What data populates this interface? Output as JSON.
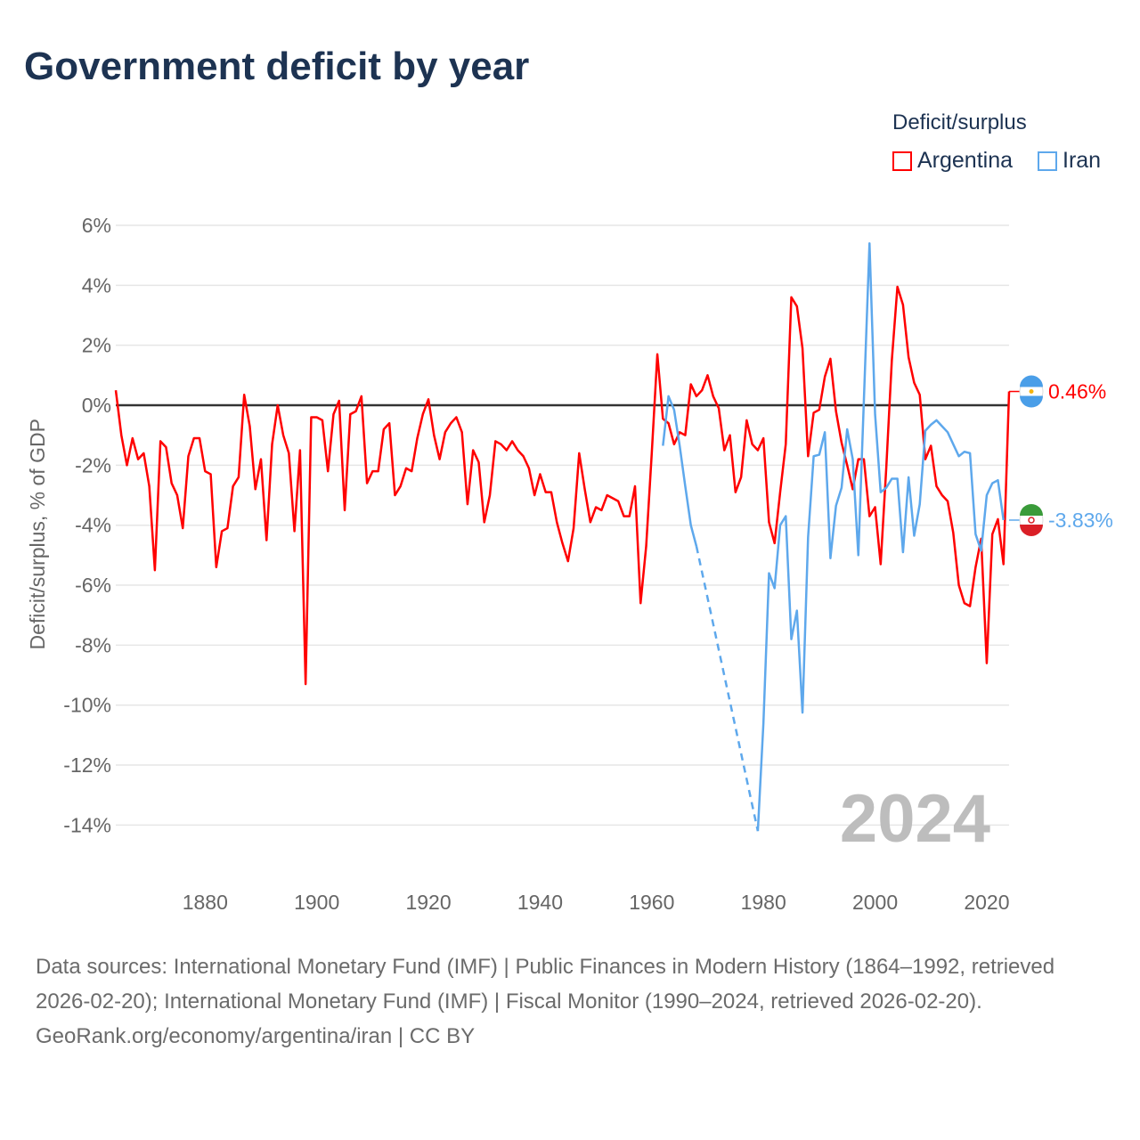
{
  "title": "Government deficit by year",
  "legend": {
    "title": "Deficit/surplus",
    "items": [
      {
        "name": "Argentina",
        "color": "#ff0000"
      },
      {
        "name": "Iran",
        "color": "#5ea8ec"
      }
    ]
  },
  "footer": {
    "sources": "Data sources: International Monetary Fund (IMF) | Public Finances in Modern History (1864–1992, retrieved 2026-02-20); International Monetary Fund (IMF) | Fiscal Monitor (1990–2024, retrieved 2026-02-20).",
    "credit": "GeoRank.org/economy/argentina/iran | CC BY"
  },
  "chart_data": {
    "type": "line",
    "title": "Government deficit by year",
    "ylabel": "Deficit/surplus, % of GDP",
    "xlabel": "",
    "xlim": [
      1864,
      2024
    ],
    "ylim": [
      -15,
      7
    ],
    "yticks": [
      6,
      4,
      2,
      0,
      -2,
      -4,
      -6,
      -8,
      -10,
      -12,
      -14
    ],
    "ytick_labels": [
      "6%",
      "4%",
      "2%",
      "0%",
      "-2%",
      "-4%",
      "-6%",
      "-8%",
      "-10%",
      "-12%",
      "-14%"
    ],
    "xticks": [
      1880,
      1900,
      1920,
      1940,
      1960,
      1980,
      2000,
      2020
    ],
    "xtick_labels": [
      "1880",
      "1900",
      "1920",
      "1940",
      "1960",
      "1980",
      "2000",
      "2020"
    ],
    "grid": true,
    "legend_position": "top-right",
    "year_label": "2024",
    "series": [
      {
        "name": "Argentina",
        "color": "#ff0000",
        "start_year": 1864,
        "end_label": "0.46%",
        "values": [
          0.5,
          -1.0,
          -2.0,
          -1.1,
          -1.8,
          -1.6,
          -2.7,
          -5.5,
          -1.2,
          -1.4,
          -2.6,
          -3.0,
          -4.1,
          -1.7,
          -1.1,
          -1.1,
          -2.2,
          -2.3,
          -5.4,
          -4.2,
          -4.1,
          -2.7,
          -2.4,
          0.35,
          -0.7,
          -2.8,
          -1.8,
          -4.5,
          -1.3,
          0.0,
          -1.0,
          -1.6,
          -4.2,
          -1.5,
          -9.3,
          -0.4,
          -0.4,
          -0.5,
          -2.2,
          -0.3,
          0.15,
          -3.5,
          -0.3,
          -0.2,
          0.3,
          -2.6,
          -2.2,
          -2.2,
          -0.8,
          -0.6,
          -3.0,
          -2.7,
          -2.1,
          -2.2,
          -1.1,
          -0.3,
          0.2,
          -1.0,
          -1.8,
          -0.9,
          -0.6,
          -0.4,
          -0.9,
          -3.3,
          -1.5,
          -1.9,
          -3.9,
          -3.0,
          -1.2,
          -1.3,
          -1.5,
          -1.2,
          -1.5,
          -1.7,
          -2.1,
          -3.0,
          -2.3,
          -2.9,
          -2.9,
          -3.9,
          -4.6,
          -5.2,
          -4.1,
          -1.6,
          -2.8,
          -3.9,
          -3.4,
          -3.5,
          -3.0,
          -3.1,
          -3.2,
          -3.7,
          -3.7,
          -2.7,
          -6.6,
          -4.7,
          -1.6,
          1.7,
          -0.45,
          -0.6,
          -1.3,
          -0.9,
          -1.0,
          0.7,
          0.3,
          0.5,
          1.0,
          0.3,
          -0.1,
          -1.5,
          -1.0,
          -2.9,
          -2.4,
          -0.5,
          -1.3,
          -1.5,
          -1.1,
          -3.9,
          -4.6,
          -2.9,
          -1.3,
          3.6,
          3.3,
          1.9,
          -1.7,
          -0.25,
          -0.15,
          0.95,
          1.55,
          -0.2,
          -1.25,
          -2.0,
          -2.8,
          -1.8,
          -1.8,
          -3.7,
          -3.4,
          -5.3,
          -2.1,
          1.5,
          3.95,
          3.35,
          1.6,
          0.75,
          0.35,
          -1.8,
          -1.35,
          -2.7,
          -3.0,
          -3.2,
          -4.25,
          -6.0,
          -6.6,
          -6.7,
          -5.4,
          -4.45,
          -8.6,
          -4.3,
          -3.8,
          -5.3,
          0.46
        ]
      },
      {
        "name": "Iran",
        "color": "#5ea8ec",
        "start_year": 1962,
        "end_label": "-3.83%",
        "values": [
          -1.35,
          0.3,
          -0.15,
          -1.35,
          -2.7,
          -4.0,
          -4.7,
          null,
          null,
          null,
          null,
          null,
          null,
          null,
          null,
          null,
          null,
          -14.2,
          -10.6,
          -5.6,
          -6.1,
          -4.0,
          -3.7,
          -7.8,
          -6.85,
          -10.25,
          -4.4,
          -1.7,
          -1.65,
          -0.9,
          -5.1,
          -3.35,
          -2.75,
          -0.8,
          -1.8,
          -5.0,
          0.2,
          5.4,
          -0.3,
          -2.9,
          -2.75,
          -2.45,
          -2.45,
          -4.9,
          -2.4,
          -4.35,
          -3.3,
          -0.85,
          -0.65,
          -0.5,
          -0.7,
          -0.9,
          -1.3,
          -1.7,
          -1.55,
          -1.6,
          -4.3,
          -4.85,
          -3.0,
          -2.6,
          -2.5,
          -3.83
        ]
      }
    ]
  }
}
